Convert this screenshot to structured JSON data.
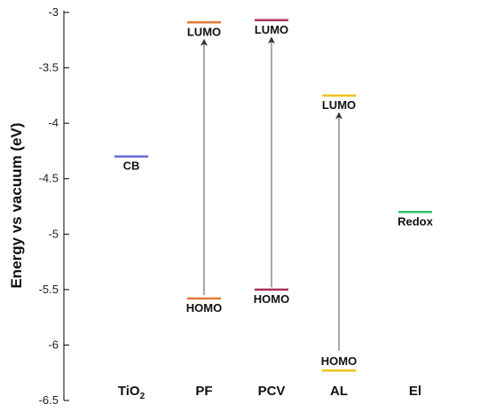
{
  "chart_data": {
    "type": "energy-level-diagram",
    "ylabel": "Energy vs vacuum (eV)",
    "ylim": [
      -6.5,
      -3
    ],
    "yticks": [
      -3,
      -3.5,
      -4,
      -4.5,
      -5,
      -5.5,
      -6,
      -6.5
    ],
    "ytick_labels": [
      "-3",
      "-3.5",
      "-4",
      "-4.5",
      "-5",
      "-5.5",
      "-6",
      "-6.5"
    ],
    "grid": false,
    "categories": [
      {
        "name": "TiO",
        "subscript": "2"
      },
      {
        "name": "PF",
        "subscript": ""
      },
      {
        "name": "PCV",
        "subscript": ""
      },
      {
        "name": "AL",
        "subscript": ""
      },
      {
        "name": "El",
        "subscript": ""
      }
    ],
    "levels": [
      {
        "category": "TiO2",
        "label": "CB",
        "energy": -4.3,
        "color": "#6b6bdc",
        "label_position": "below"
      },
      {
        "category": "PF",
        "label": "LUMO",
        "energy": -3.09,
        "color": "#e07b39",
        "label_position": "below"
      },
      {
        "category": "PF",
        "label": "HOMO",
        "energy": -5.58,
        "color": "#e07b39",
        "label_position": "below"
      },
      {
        "category": "PCV",
        "label": "LUMO",
        "energy": -3.07,
        "color": "#a8325e",
        "label_position": "below"
      },
      {
        "category": "PCV",
        "label": "HOMO",
        "energy": -5.5,
        "color": "#a8325e",
        "label_position": "below"
      },
      {
        "category": "AL",
        "label": "LUMO",
        "energy": -3.75,
        "color": "#f2c21b",
        "label_position": "below"
      },
      {
        "category": "AL",
        "label": "HOMO",
        "energy": -6.23,
        "color": "#f2c21b",
        "label_position": "above"
      },
      {
        "category": "El",
        "label": "Redox",
        "energy": -4.8,
        "color": "#2fbf71",
        "label_position": "below"
      }
    ],
    "arrows": [
      {
        "category": "PF",
        "from": -5.55,
        "to": -3.27
      },
      {
        "category": "PCV",
        "from": -5.48,
        "to": -3.25
      },
      {
        "category": "AL",
        "from": -6.05,
        "to": -3.93
      }
    ]
  }
}
